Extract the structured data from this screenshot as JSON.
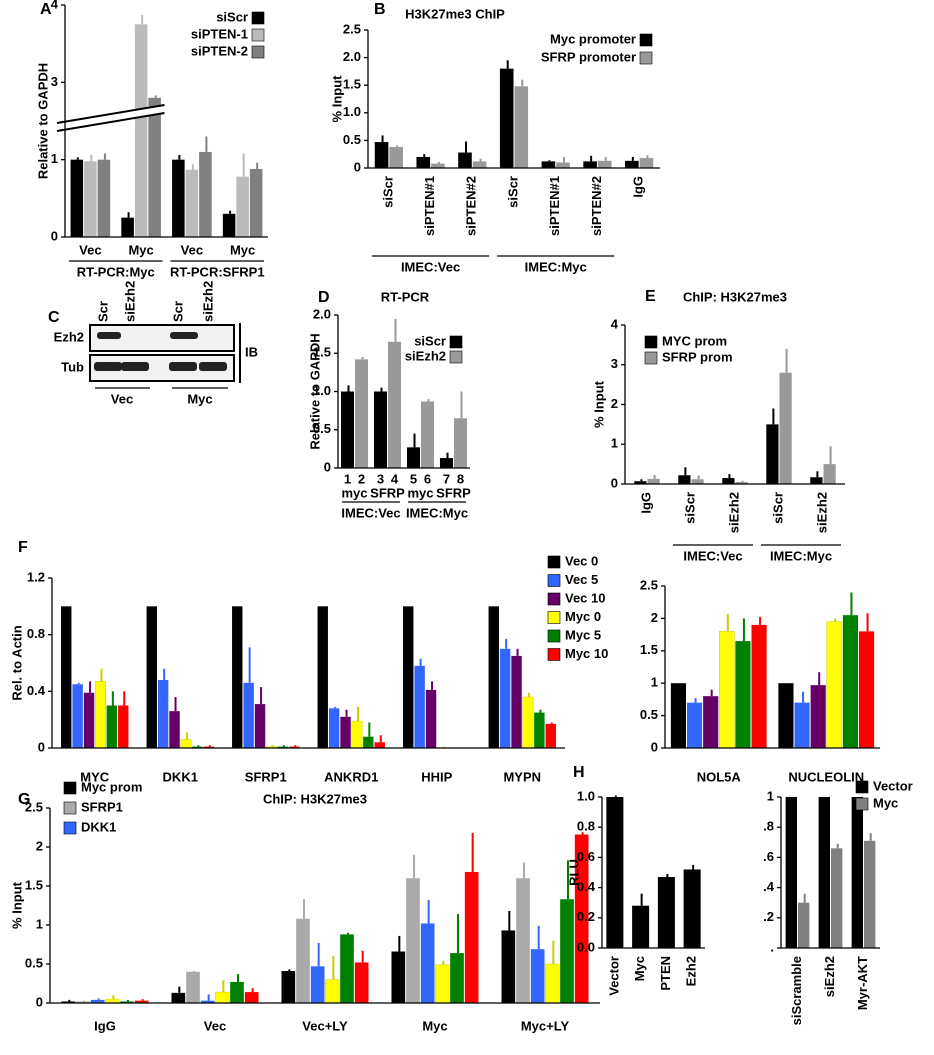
{
  "chart_data": [
    {
      "type": "bar",
      "panel_label": "A",
      "ylabel": "Relative to GAPDH",
      "categories": [
        "Vec",
        "Myc",
        "Vec",
        "Myc"
      ],
      "groups": [
        {
          "label": "RT-PCR:Myc",
          "span": [
            0,
            1
          ]
        },
        {
          "label": "RT-PCR:SFRP1",
          "span": [
            2,
            3
          ]
        }
      ],
      "series": [
        {
          "name": "siScr",
          "color": "#000000",
          "values": [
            1.0,
            0.25,
            1.0,
            0.3
          ],
          "errors": [
            0.03,
            0.07,
            0.06,
            0.04
          ]
        },
        {
          "name": "siPTEN-1",
          "color": "#bbbbbb",
          "values": [
            0.98,
            3.75,
            0.87,
            0.78
          ],
          "errors": [
            0.08,
            0.12,
            0.07,
            0.3
          ]
        },
        {
          "name": "siPTEN-2",
          "color": "#808080",
          "values": [
            1.0,
            2.8,
            1.1,
            0.88
          ],
          "errors": [
            0.08,
            0.03,
            0.2,
            0.08
          ]
        }
      ],
      "ylim": [
        0,
        4
      ],
      "yticks": [
        0,
        1,
        3,
        4
      ],
      "axis_break": [
        1.5,
        2.5
      ],
      "legend": "upper right"
    },
    {
      "type": "bar",
      "panel_label": "B",
      "title": "H3K27me3 ChIP",
      "ylabel": "% Input",
      "categories": [
        "siScr",
        "siPTEN#1",
        "siPTEN#2",
        "siScr",
        "siPTEN#1",
        "siPTEN#2",
        "IgG"
      ],
      "groups": [
        {
          "label": "IMEC:Vec",
          "span": [
            0,
            2
          ]
        },
        {
          "label": "IMEC:Myc",
          "span": [
            3,
            5
          ]
        }
      ],
      "series": [
        {
          "name": "Myc promoter",
          "color": "#000000",
          "values": [
            0.47,
            0.2,
            0.28,
            1.8,
            0.12,
            0.12,
            0.13
          ],
          "errors": [
            0.12,
            0.05,
            0.2,
            0.15,
            0.02,
            0.1,
            0.07
          ]
        },
        {
          "name": "SFRP promoter",
          "color": "#999999",
          "values": [
            0.38,
            0.08,
            0.12,
            1.48,
            0.1,
            0.13,
            0.18
          ],
          "errors": [
            0.03,
            0.03,
            0.05,
            0.12,
            0.1,
            0.07,
            0.05
          ]
        }
      ],
      "ylim": [
        0,
        2.5
      ],
      "yticks": [
        0,
        0.5,
        {
          "value": 1,
          "label": "1.0"
        },
        1.5,
        {
          "value": 2,
          "label": "2.0"
        },
        2.5
      ],
      "legend": "upper right"
    },
    {
      "type": "bar",
      "panel_label": "D",
      "title": "RT-PCR",
      "ylabel": "Relative to GAPDH",
      "categories": [
        "myc",
        "SFRP",
        "myc",
        "SFRP"
      ],
      "bar_labels": [
        "1",
        "2",
        "3",
        "4",
        "5",
        "6",
        "7",
        "8"
      ],
      "groups": [
        {
          "label": "IMEC:Vec",
          "span": [
            0,
            1
          ]
        },
        {
          "label": "IMEC:Myc",
          "span": [
            2,
            3
          ]
        }
      ],
      "series": [
        {
          "name": "siScr",
          "color": "#000000",
          "values": [
            1.0,
            1.0,
            0.27,
            0.13
          ],
          "errors": [
            0.08,
            0.05,
            0.18,
            0.07
          ]
        },
        {
          "name": "siEzh2",
          "color": "#999999",
          "values": [
            1.42,
            1.65,
            0.87,
            0.65
          ],
          "errors": [
            0.03,
            0.3,
            0.03,
            0.35
          ]
        }
      ],
      "ylim": [
        0,
        2
      ],
      "yticks": [
        0,
        0.5,
        {
          "value": 1,
          "label": "1.0"
        },
        1.5,
        {
          "value": 2,
          "label": "2.0"
        }
      ],
      "legend": "upper right"
    },
    {
      "type": "bar",
      "panel_label": "E",
      "title": "ChIP: H3K27me3",
      "ylabel": "% Input",
      "categories": [
        "IgG",
        "siScr",
        "siEzh2",
        "siScr",
        "siEzh2"
      ],
      "groups": [
        {
          "label": "IMEC:Vec",
          "span": [
            1,
            2
          ]
        },
        {
          "label": "IMEC:Myc",
          "span": [
            3,
            4
          ]
        }
      ],
      "series": [
        {
          "name": "MYC prom",
          "color": "#000000",
          "values": [
            0.07,
            0.22,
            0.15,
            1.5,
            0.17
          ],
          "errors": [
            0.05,
            0.2,
            0.1,
            0.4,
            0.15
          ]
        },
        {
          "name": "SFRP prom",
          "color": "#999999",
          "values": [
            0.13,
            0.12,
            0.05,
            2.8,
            0.5
          ],
          "errors": [
            0.1,
            0.1,
            0.03,
            0.6,
            0.45
          ]
        }
      ],
      "ylim": [
        0,
        4
      ],
      "yticks": [
        0,
        1,
        2,
        3,
        4
      ],
      "legend": "upper left"
    },
    {
      "type": "bar",
      "panel_label": "F",
      "ylabel": "Rel. to Actin",
      "categories": [
        "MYC",
        "DKK1",
        "SFRP1",
        "ANKRD1",
        "HHIP",
        "MYPN"
      ],
      "series": [
        {
          "name": "Vec 0",
          "color": "#000000",
          "values": [
            1,
            1,
            1,
            1,
            1,
            1
          ],
          "errors": [
            0,
            0,
            0,
            0,
            0,
            0
          ]
        },
        {
          "name": "Vec 5",
          "color": "#3366ff",
          "values": [
            0.45,
            0.48,
            0.46,
            0.28,
            0.58,
            0.7
          ],
          "errors": [
            0.01,
            0.08,
            0.25,
            0.01,
            0.05,
            0.07
          ]
        },
        {
          "name": "Vec 10",
          "color": "#660066",
          "values": [
            0.39,
            0.26,
            0.31,
            0.22,
            0.41,
            0.65
          ],
          "errors": [
            0.08,
            0.1,
            0.12,
            0.05,
            0.06,
            0.05
          ]
        },
        {
          "name": "Myc 0",
          "color": "#ffff00",
          "values": [
            0.47,
            0.06,
            0.01,
            0.19,
            0,
            0.36
          ],
          "errors": [
            0.09,
            0.05,
            0.01,
            0.1,
            0.01,
            0.03
          ]
        },
        {
          "name": "Myc 5",
          "color": "#008000",
          "values": [
            0.3,
            0.01,
            0.01,
            0.08,
            0,
            0.25
          ],
          "errors": [
            0.1,
            0.01,
            0.01,
            0.1,
            0,
            0.02
          ]
        },
        {
          "name": "Myc 10",
          "color": "#ff0000",
          "values": [
            0.3,
            0.01,
            0.01,
            0.04,
            0,
            0.17
          ],
          "errors": [
            0.1,
            0.01,
            0.01,
            0.05,
            0,
            0.01
          ]
        }
      ],
      "ylim": [
        0,
        1.2
      ],
      "yticks": [
        0,
        0.4,
        0.8,
        1.2
      ],
      "legend": "right"
    },
    {
      "type": "bar",
      "categories": [
        "NOL5A",
        "NUCLEOLIN"
      ],
      "series": [
        {
          "color": "#000000",
          "values": [
            1,
            1
          ],
          "errors": [
            0,
            0
          ]
        },
        {
          "color": "#3366ff",
          "values": [
            0.7,
            0.7
          ],
          "errors": [
            0.07,
            0.17
          ]
        },
        {
          "color": "#660066",
          "values": [
            0.8,
            0.97
          ],
          "errors": [
            0.1,
            0.2
          ]
        },
        {
          "color": "#ffff00",
          "values": [
            1.8,
            1.95
          ],
          "errors": [
            0.27,
            0.05
          ]
        },
        {
          "color": "#008000",
          "values": [
            1.65,
            2.05
          ],
          "errors": [
            0.35,
            0.35
          ]
        },
        {
          "color": "#ff0000",
          "values": [
            1.9,
            1.8
          ],
          "errors": [
            0.12,
            0.28
          ]
        }
      ],
      "ylim": [
        0,
        2.5
      ],
      "yticks": [
        0,
        0.5,
        1,
        1.5,
        2,
        2.5
      ]
    },
    {
      "type": "bar",
      "panel_label": "G",
      "title": "ChIP: H3K27me3",
      "ylabel": "% Input",
      "categories": [
        "IgG",
        "Vec",
        "Vec+LY",
        "Myc",
        "Myc+LY"
      ],
      "series": [
        {
          "name": "Myc prom",
          "color": "#000000",
          "values": [
            0.02,
            0.13,
            0.41,
            0.66,
            0.93
          ],
          "errors": [
            0.02,
            0.08,
            0.02,
            0.2,
            0.25
          ]
        },
        {
          "name": "SFRP1",
          "color": "#aaaaaa",
          "values": [
            0.02,
            0.4,
            1.08,
            1.6,
            1.6
          ],
          "errors": [
            0.01,
            0.01,
            0.25,
            0.3,
            0.2
          ]
        },
        {
          "name": "DKK1",
          "color": "#3366ff",
          "values": [
            0.04,
            0.03,
            0.47,
            1.02,
            0.69
          ],
          "errors": [
            0.02,
            0.08,
            0.3,
            0.3,
            0.3
          ]
        },
        {
          "color": "#ffff00",
          "values": [
            0.05,
            0.14,
            0.3,
            0.49,
            0.5
          ],
          "errors": [
            0.05,
            0.15,
            0.3,
            0.05,
            0.3
          ]
        },
        {
          "color": "#008000",
          "values": [
            0.02,
            0.27,
            0.88,
            0.64,
            1.33
          ],
          "errors": [
            0.02,
            0.1,
            0.02,
            0.5,
            0.5
          ]
        },
        {
          "color": "#ff0000",
          "values": [
            0.03,
            0.14,
            0.52,
            1.68,
            2.16
          ],
          "errors": [
            0.02,
            0.05,
            0.15,
            0.5,
            0.03
          ]
        }
      ],
      "ylim": [
        0,
        2.5
      ],
      "yticks": [
        0,
        0.5,
        1,
        1.5,
        2,
        2.5
      ],
      "legend": "upper left"
    },
    {
      "type": "bar",
      "panel_label": "H",
      "ylabel": "RLU",
      "categories": [
        "Vector",
        "Myc",
        "PTEN",
        "Ezh2"
      ],
      "series": [
        {
          "color": "#000000",
          "values": [
            1.0,
            0.28,
            0.47,
            0.52
          ],
          "errors": [
            0.01,
            0.08,
            0.02,
            0.03
          ]
        }
      ],
      "ylim": [
        0,
        1
      ],
      "yticks": [
        {
          "value": 0,
          "label": "0.0"
        },
        0.2,
        0.4,
        0.6,
        0.8,
        {
          "value": 1,
          "label": "1.0"
        }
      ]
    },
    {
      "type": "bar",
      "categories": [
        "siScramble",
        "siEzh2",
        "Myr-AKT"
      ],
      "series": [
        {
          "name": "Vector",
          "color": "#000000",
          "values": [
            1,
            1,
            1
          ],
          "errors": [
            0,
            0,
            0
          ]
        },
        {
          "name": "Myc",
          "color": "#808080",
          "values": [
            0.3,
            0.66,
            0.71
          ],
          "errors": [
            0.06,
            0.03,
            0.05
          ]
        }
      ],
      "ylim": [
        0,
        1
      ],
      "yticks": [
        {
          "value": 0,
          "label": "."
        },
        {
          "value": 0.2,
          "label": ".2"
        },
        {
          "value": 0.4,
          "label": ".4"
        },
        {
          "value": 0.6,
          "label": ".6"
        },
        {
          "value": 0.8,
          "label": ".8"
        },
        1
      ],
      "legend": "upper right"
    }
  ],
  "blot": {
    "panel_label": "C",
    "lanes": [
      "Scr",
      "siEzh2",
      "Scr",
      "siEzh2"
    ],
    "rows": [
      "Ezh2",
      "Tub"
    ],
    "side_label": "IB",
    "groups": [
      "Vec",
      "Myc"
    ]
  }
}
